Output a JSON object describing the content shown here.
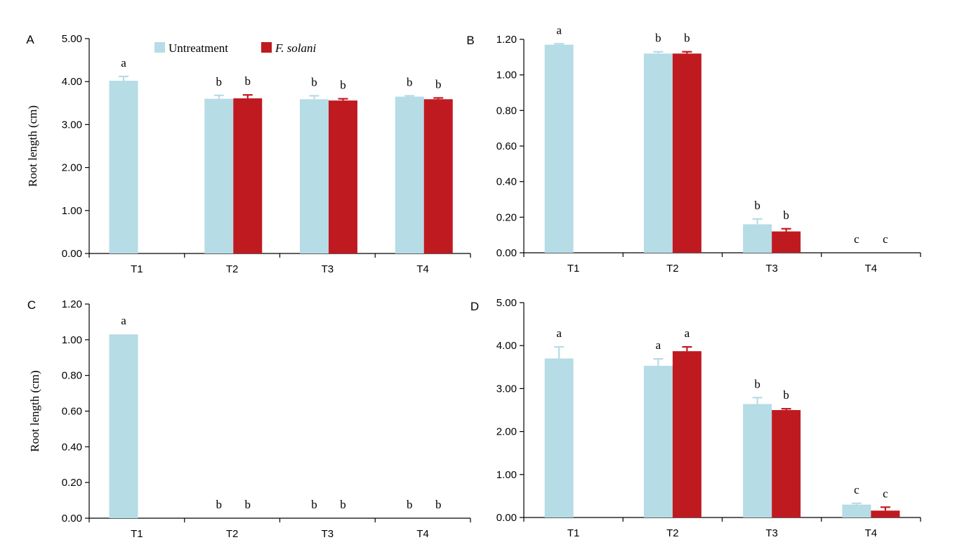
{
  "colors": {
    "untreatment": "#b6dce6",
    "f_solani": "#c01a21",
    "axis": "#000000"
  },
  "legend": {
    "entries": [
      {
        "label": "Untreatment",
        "color": "#b6dce6",
        "italic": false
      },
      {
        "label": "F. solani",
        "color": "#c01a21",
        "italic": true
      }
    ],
    "placement": "top-center of panel A"
  },
  "chart_data": [
    {
      "panel": "A",
      "type": "bar",
      "ylabel": "Root length (cm)",
      "ylim": [
        0,
        5
      ],
      "yticks": [
        "0.00",
        "1.00",
        "2.00",
        "3.00",
        "4.00",
        "5.00"
      ],
      "categories": [
        "T1",
        "T2",
        "T3",
        "T4"
      ],
      "grid": false,
      "series": [
        {
          "name": "Untreatment",
          "values": [
            4.02,
            3.6,
            3.59,
            3.65
          ],
          "errors": [
            0.1,
            0.08,
            0.08,
            0.02
          ],
          "letters": [
            "a",
            "b",
            "b",
            "b"
          ]
        },
        {
          "name": "F. solani",
          "values": [
            null,
            3.61,
            3.56,
            3.59
          ],
          "errors": [
            null,
            0.08,
            0.04,
            0.03
          ],
          "letters": [
            "",
            "b",
            "b",
            "b"
          ]
        }
      ]
    },
    {
      "panel": "B",
      "type": "bar",
      "ylabel": "",
      "ylim": [
        0,
        1.2
      ],
      "yticks": [
        "0.00",
        "0.20",
        "0.40",
        "0.60",
        "0.80",
        "1.00",
        "1.20"
      ],
      "categories": [
        "T1",
        "T2",
        "T3",
        "T4"
      ],
      "grid": false,
      "series": [
        {
          "name": "Untreatment",
          "values": [
            1.17,
            1.12,
            0.16,
            0
          ],
          "errors": [
            0.005,
            0.01,
            0.03,
            0
          ],
          "letters": [
            "a",
            "b",
            "b",
            "c"
          ]
        },
        {
          "name": "F. solani",
          "values": [
            null,
            1.12,
            0.12,
            0
          ],
          "errors": [
            null,
            0.01,
            0.015,
            0
          ],
          "letters": [
            "",
            "b",
            "b",
            "c"
          ]
        }
      ]
    },
    {
      "panel": "C",
      "type": "bar",
      "ylabel": "Root length (cm)",
      "ylim": [
        0,
        1.2
      ],
      "yticks": [
        "0.00",
        "0.20",
        "0.40",
        "0.60",
        "0.80",
        "1.00",
        "1.20"
      ],
      "categories": [
        "T1",
        "T2",
        "T3",
        "T4"
      ],
      "grid": false,
      "series": [
        {
          "name": "Untreatment",
          "values": [
            1.03,
            0,
            0,
            0
          ],
          "errors": [
            0,
            0,
            0,
            0
          ],
          "letters": [
            "a",
            "b",
            "b",
            "b"
          ]
        },
        {
          "name": "F. solani",
          "values": [
            null,
            0,
            0,
            0
          ],
          "errors": [
            null,
            0,
            0,
            0
          ],
          "letters": [
            "",
            "b",
            "b",
            "b"
          ]
        }
      ]
    },
    {
      "panel": "D",
      "type": "bar",
      "ylabel": "",
      "ylim": [
        0,
        5
      ],
      "yticks": [
        "0.00",
        "1.00",
        "2.00",
        "3.00",
        "4.00",
        "5.00"
      ],
      "categories": [
        "T1",
        "T2",
        "T3",
        "T4"
      ],
      "grid": false,
      "series": [
        {
          "name": "Untreatment",
          "values": [
            3.7,
            3.53,
            2.64,
            0.3
          ],
          "errors": [
            0.27,
            0.16,
            0.15,
            0.03
          ],
          "letters": [
            "a",
            "a",
            "b",
            "c"
          ]
        },
        {
          "name": "F. solani",
          "values": [
            null,
            3.87,
            2.5,
            0.16
          ],
          "errors": [
            null,
            0.1,
            0.03,
            0.08
          ],
          "letters": [
            "",
            "a",
            "b",
            "c"
          ]
        }
      ]
    }
  ]
}
